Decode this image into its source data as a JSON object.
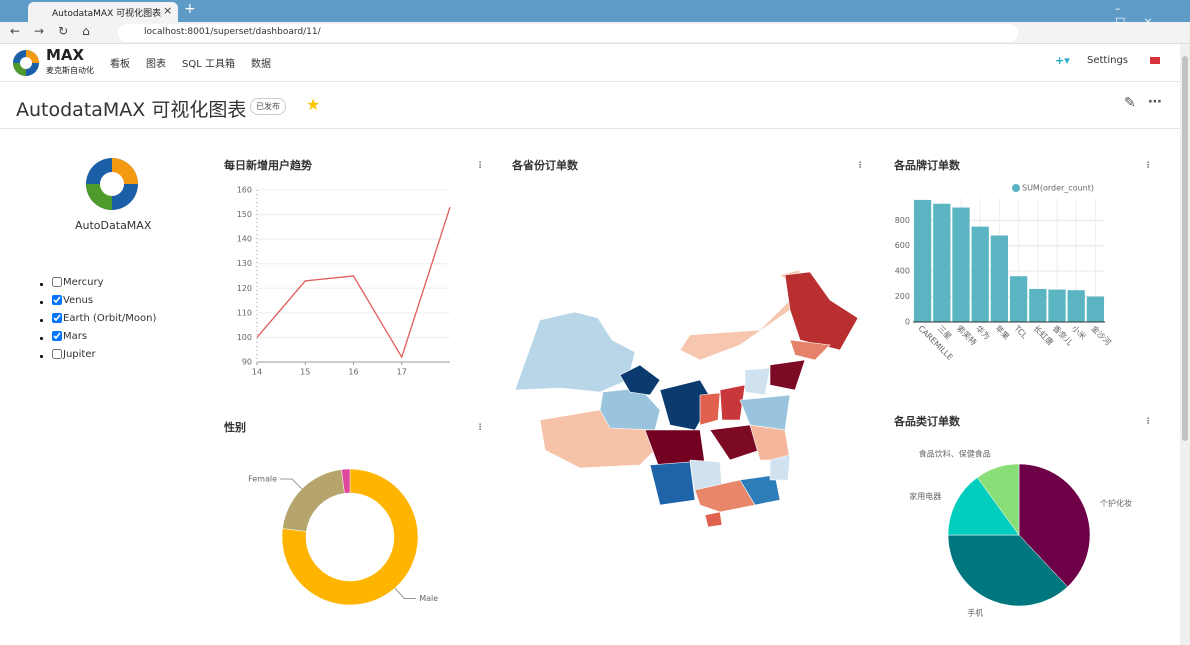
{
  "browser": {
    "tab_title": "AutodataMAX 可视化图表",
    "url": "localhost:8001/superset/dashboard/11/"
  },
  "nav": {
    "logo_mark": "MAX",
    "logo_text": "麦克斯自动化",
    "menu": [
      "看板",
      "图表",
      "SQL 工具箱",
      "数据"
    ],
    "settings": "Settings"
  },
  "dashboard": {
    "title": "AutodataMAX 可视化图表",
    "status": "已发布"
  },
  "logo_widget": {
    "label": "AutoDataMAX"
  },
  "checklist": [
    {
      "label": "Mercury",
      "checked": false
    },
    {
      "label": "Venus",
      "checked": true
    },
    {
      "label": "Earth (Orbit/Moon)",
      "checked": true
    },
    {
      "label": "Mars",
      "checked": true
    },
    {
      "label": "Jupiter",
      "checked": false
    }
  ],
  "chart_data": [
    {
      "type": "line",
      "title": "每日新增用户趋势",
      "x": [
        14,
        15,
        16,
        17,
        18
      ],
      "values": [
        100,
        123,
        125,
        92,
        153
      ],
      "color": "#e45b5b",
      "xlim": [
        14,
        18
      ],
      "xticks": [
        14,
        15,
        16,
        17
      ],
      "ylim": [
        90,
        160
      ],
      "yticks": [
        90,
        100,
        110,
        120,
        130,
        140,
        150,
        160
      ],
      "grid": true
    },
    {
      "type": "donut",
      "title": "性别",
      "categories": [
        "Male",
        "Female",
        null
      ],
      "values": [
        77,
        21,
        2
      ],
      "colors": [
        "#ffb400",
        "#b5a46c",
        "#e0489c"
      ]
    },
    {
      "type": "map",
      "title": "各省份订单数"
    },
    {
      "type": "bar",
      "title": "各品牌订单数",
      "categories": [
        "CAREMILLE",
        "三星",
        "索芙特",
        "华为",
        "苹果",
        "TCL",
        "长虹唐",
        "香奈儿",
        "小米",
        "金沙河"
      ],
      "series": [
        {
          "name": "SUM(order_count)",
          "color": "#5ab4c2",
          "values": [
            960,
            930,
            900,
            750,
            680,
            360,
            260,
            255,
            250,
            200
          ]
        }
      ],
      "ylim": [
        0,
        975
      ],
      "yticks": [
        0,
        200,
        400,
        600,
        800
      ],
      "grid": true
    },
    {
      "type": "pie",
      "title": "各品类订单数",
      "categories": [
        "个护化妆",
        "手机",
        "家用电器",
        "食品饮料、保健食品"
      ],
      "values": [
        38,
        37,
        15,
        10
      ],
      "colors": [
        "#6e0048",
        "#00777f",
        "#00cdbd",
        "#8ade78"
      ]
    }
  ]
}
